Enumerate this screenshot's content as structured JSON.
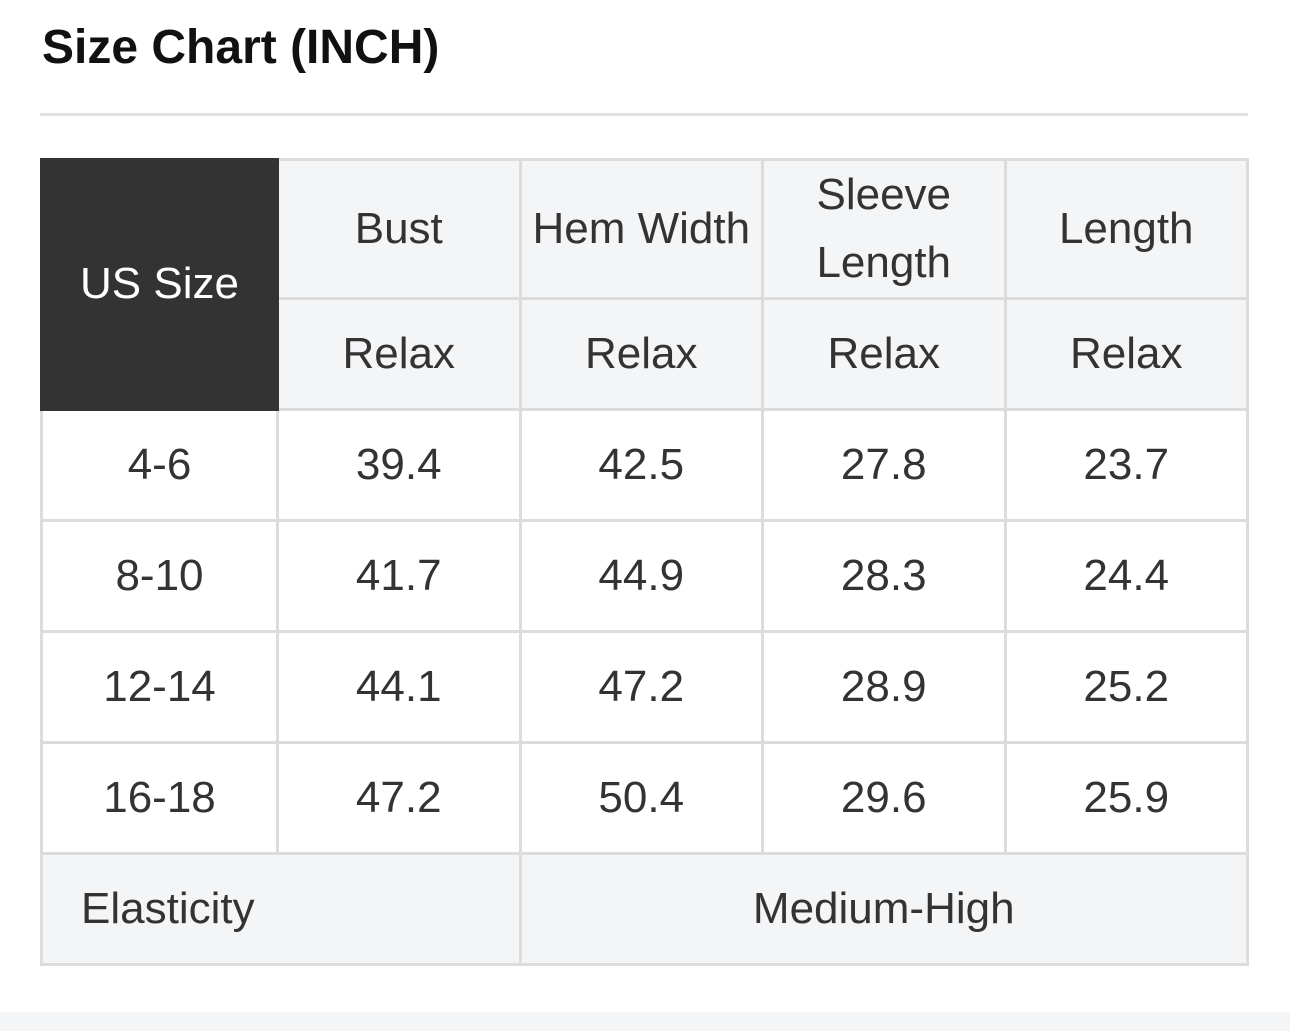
{
  "title": "Size Chart (INCH)",
  "table": {
    "size_header": "US Size",
    "columns": [
      "Bust",
      "Hem Width",
      "Sleeve Length",
      "Length"
    ],
    "sub_headers": [
      "Relax",
      "Relax",
      "Relax",
      "Relax"
    ],
    "rows": [
      {
        "size": "4-6",
        "values": [
          "39.4",
          "42.5",
          "27.8",
          "23.7"
        ]
      },
      {
        "size": "8-10",
        "values": [
          "41.7",
          "44.9",
          "28.3",
          "24.4"
        ]
      },
      {
        "size": "12-14",
        "values": [
          "44.1",
          "47.2",
          "28.9",
          "25.2"
        ]
      },
      {
        "size": "16-18",
        "values": [
          "47.2",
          "50.4",
          "29.6",
          "25.9"
        ]
      }
    ],
    "elasticity_label": "Elasticity",
    "elasticity_value": "Medium-High"
  },
  "colors": {
    "header_dark": "#333333",
    "header_light": "#f4f5f7",
    "border": "#dcdcdc"
  }
}
